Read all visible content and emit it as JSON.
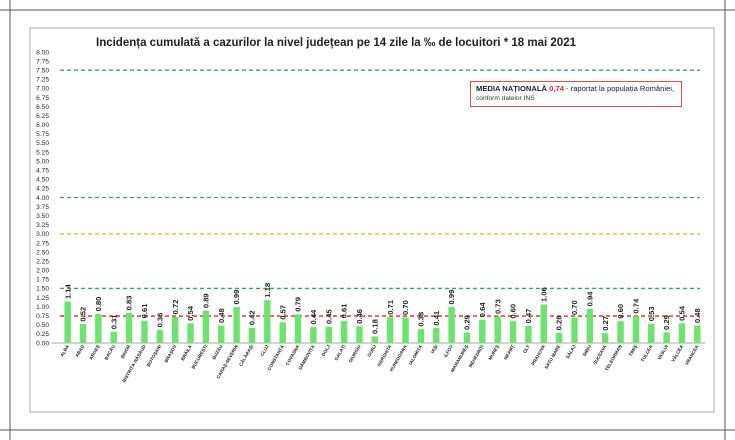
{
  "chart_data": {
    "type": "bar",
    "title": "Incidența cumulată a cazurilor la nivel județean pe 14 zile la ‰ de locuitori *  18 mai 2021",
    "ylim": [
      0,
      8
    ],
    "yticks": [
      "0.00",
      "0.25",
      "0.50",
      "0.75",
      "1.00",
      "1.25",
      "1.50",
      "1.75",
      "2.00",
      "2.25",
      "2.50",
      "2.75",
      "3.00",
      "3.25",
      "3.50",
      "3.75",
      "4.00",
      "4.25",
      "4.50",
      "4.75",
      "5.00",
      "5.25",
      "5.50",
      "5.75",
      "6.00",
      "6.25",
      "6.50",
      "6.75",
      "7.00",
      "7.25",
      "7.50",
      "7.75",
      "8.00"
    ],
    "categories": [
      "ALBA",
      "ARAD",
      "ARGEȘ",
      "BACĂU",
      "BIHOR",
      "BISTRIȚA-NĂSĂUD",
      "BOTOȘANI",
      "BRAȘOV",
      "BRĂILA",
      "BUCUREȘTI",
      "BUZĂU",
      "CARAȘ-SEVERIN",
      "CĂLĂRAȘI",
      "CLUJ",
      "CONSTANȚA",
      "COVASNA",
      "DÂMBOVIȚA",
      "DOLJ",
      "GALAȚI",
      "GIURGIU",
      "GORJ",
      "HARGHITA",
      "HUNEDOARA",
      "IALOMIȚA",
      "IAȘI",
      "ILFOV",
      "MARAMUREȘ",
      "MEHEDINȚI",
      "MUREȘ",
      "NEAMȚ",
      "OLT",
      "PRAHOVA",
      "SATU MARE",
      "SĂLAJ",
      "SIBIU",
      "SUCEAVA",
      "TELEORMAN",
      "TIMIȘ",
      "TULCEA",
      "VASLUI",
      "VÂLCEA",
      "VRANCEA"
    ],
    "values": [
      1.14,
      0.52,
      0.8,
      0.31,
      0.83,
      0.61,
      0.36,
      0.72,
      0.54,
      0.89,
      0.48,
      0.99,
      0.42,
      1.18,
      0.57,
      0.79,
      0.44,
      0.45,
      0.61,
      0.46,
      0.18,
      0.71,
      0.7,
      0.38,
      0.41,
      0.99,
      0.29,
      0.64,
      0.73,
      0.6,
      0.47,
      1.06,
      0.28,
      0.7,
      0.94,
      0.27,
      0.6,
      0.74,
      0.53,
      0.29,
      0.54,
      0.48
    ],
    "labels": [
      "1.14",
      "0.52",
      "0.80",
      "0.31",
      "0.83",
      "0.61",
      "0.36",
      "0.72",
      "0.54",
      "0.89",
      "0.48",
      "0.99",
      "0.42",
      "1.18",
      "0.57",
      "0.79",
      "0.44",
      "0.45",
      "0.61",
      "0.46",
      "0.18",
      "0.71",
      "0.70",
      "0.38",
      "0.41",
      "0.99",
      "0.29",
      "0.64",
      "0.73",
      "0.60",
      "0.47",
      "1.06",
      "0.28",
      "0.70",
      "0.94",
      "0.27",
      "0.60",
      "0.74",
      "0.53",
      "0.29",
      "0.54",
      "0.48"
    ],
    "bar_color": "#6fe36f",
    "reference_lines": [
      {
        "value": 7.5,
        "color": "#3b8fc4"
      },
      {
        "value": 4.0,
        "color": "#3b8fc4"
      },
      {
        "value": 3.0,
        "color": "#e0b020"
      },
      {
        "value": 1.5,
        "color": "#3aa84a"
      },
      {
        "value": 0.74,
        "color": "#e02020"
      }
    ],
    "legend": {
      "line1_prefix": "MEDIA NAȚIONALĂ",
      "line1_value": "0,74",
      "line1_suffix": " - raportat la populația României,",
      "line2": "conform datelor INS"
    }
  }
}
